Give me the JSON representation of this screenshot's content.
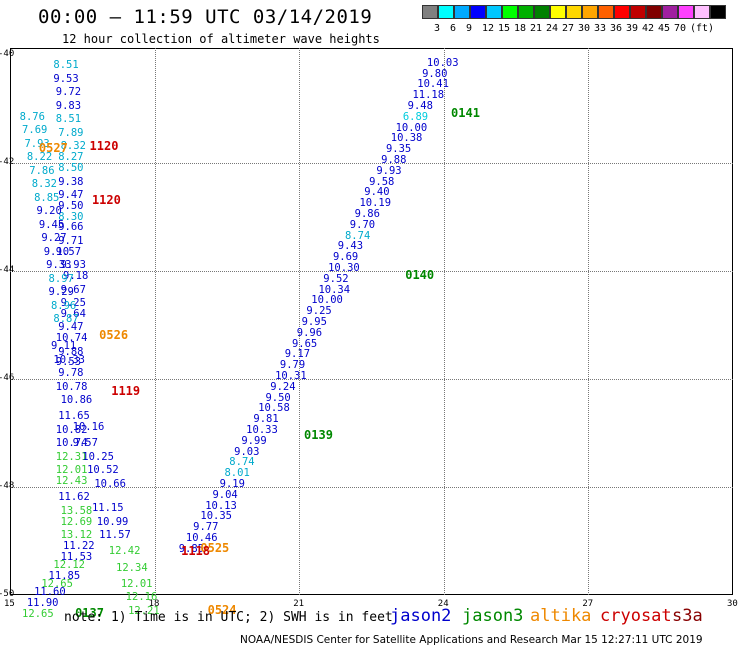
{
  "title": "00:00 – 11:59 UTC 03/14/2019",
  "subtitle": "12 hour collection of altimeter wave heights",
  "legend": {
    "colors": [
      "#808080",
      "#00ffff",
      "#00aaff",
      "#0000ff",
      "#00c8ff",
      "#00ff00",
      "#00b000",
      "#008000",
      "#ffff00",
      "#ffd700",
      "#ffa500",
      "#ff6000",
      "#ff0000",
      "#c00000",
      "#800000",
      "#a020a0",
      "#ff40ff",
      "#ffc0ff",
      "#000000"
    ],
    "labels": [
      "3",
      "6",
      "9",
      "12",
      "15",
      "18",
      "21",
      "24",
      "27",
      "30",
      "33",
      "36",
      "39",
      "42",
      "45",
      "70",
      "(ft)"
    ]
  },
  "y_ticks": [
    "-40",
    "-42",
    "-44",
    "-46",
    "-48",
    "-50"
  ],
  "x_ticks": [
    "15",
    "18",
    "21",
    "24",
    "27",
    "30"
  ],
  "chart_data": {
    "type": "map",
    "lat_range": [
      -50,
      -40
    ],
    "lon_range": [
      15,
      30
    ],
    "observations": [
      {
        "v": "8.51",
        "c": "#00aacc",
        "lat": -40.1,
        "lon": 15.9
      },
      {
        "v": "9.53",
        "c": "#0000cc",
        "lat": -40.35,
        "lon": 15.9
      },
      {
        "v": "9.72",
        "c": "#0000cc",
        "lat": -40.6,
        "lon": 15.95
      },
      {
        "v": "9.83",
        "c": "#0000cc",
        "lat": -40.85,
        "lon": 15.95
      },
      {
        "v": "8.51",
        "c": "#00aacc",
        "lat": -41.1,
        "lon": 15.95
      },
      {
        "v": "7.89",
        "c": "#00aacc",
        "lat": -41.35,
        "lon": 16.0
      },
      {
        "v": "8.32",
        "c": "#00aacc",
        "lat": -41.6,
        "lon": 16.05
      },
      {
        "v": "8.27",
        "c": "#00aacc",
        "lat": -41.8,
        "lon": 16.0
      },
      {
        "v": "8.50",
        "c": "#00aacc",
        "lat": -42.0,
        "lon": 16.0
      },
      {
        "v": "9.38",
        "c": "#0000cc",
        "lat": -42.25,
        "lon": 16.0
      },
      {
        "v": "9.47",
        "c": "#0000cc",
        "lat": -42.5,
        "lon": 16.0
      },
      {
        "v": "9.50",
        "c": "#0000cc",
        "lat": -42.7,
        "lon": 16.0
      },
      {
        "v": "8.30",
        "c": "#00aacc",
        "lat": -42.9,
        "lon": 16.0
      },
      {
        "v": "9.66",
        "c": "#0000cc",
        "lat": -43.1,
        "lon": 16.0
      },
      {
        "v": "9.71",
        "c": "#0000cc",
        "lat": -43.35,
        "lon": 16.0
      },
      {
        "v": "9.57",
        "c": "#0000cc",
        "lat": -43.55,
        "lon": 15.95
      },
      {
        "v": "9.93",
        "c": "#0000cc",
        "lat": -43.8,
        "lon": 16.05
      },
      {
        "v": "9.18",
        "c": "#0000cc",
        "lat": -44.0,
        "lon": 16.1
      },
      {
        "v": "9.67",
        "c": "#0000cc",
        "lat": -44.25,
        "lon": 16.05
      },
      {
        "v": "9.25",
        "c": "#0000cc",
        "lat": -44.5,
        "lon": 16.05
      },
      {
        "v": "9.64",
        "c": "#0000cc",
        "lat": -44.7,
        "lon": 16.05
      },
      {
        "v": "9.47",
        "c": "#0000cc",
        "lat": -44.95,
        "lon": 16.0
      },
      {
        "v": "10.74",
        "c": "#0000cc",
        "lat": -45.15,
        "lon": 15.95
      },
      {
        "v": "9.88",
        "c": "#0000cc",
        "lat": -45.4,
        "lon": 16.0
      },
      {
        "v": "9.53",
        "c": "#0000cc",
        "lat": -45.6,
        "lon": 15.95
      },
      {
        "v": "9.78",
        "c": "#0000cc",
        "lat": -45.8,
        "lon": 16.0
      },
      {
        "v": "10.78",
        "c": "#0000cc",
        "lat": -46.05,
        "lon": 15.95
      },
      {
        "v": "10.86",
        "c": "#0000cc",
        "lat": -46.3,
        "lon": 16.05
      },
      {
        "v": "11.65",
        "c": "#0000cc",
        "lat": -46.6,
        "lon": 16.0
      },
      {
        "v": "10.82",
        "c": "#0000cc",
        "lat": -46.85,
        "lon": 15.95
      },
      {
        "v": "10.74",
        "c": "#0000cc",
        "lat": -47.1,
        "lon": 15.95
      },
      {
        "v": "12.31",
        "c": "#33cc33",
        "lat": -47.35,
        "lon": 15.95
      },
      {
        "v": "12.01",
        "c": "#33cc33",
        "lat": -47.6,
        "lon": 15.95
      },
      {
        "v": "12.43",
        "c": "#33cc33",
        "lat": -47.8,
        "lon": 15.95
      },
      {
        "v": "11.62",
        "c": "#0000cc",
        "lat": -48.1,
        "lon": 16.0
      },
      {
        "v": "13.58",
        "c": "#33cc33",
        "lat": -48.35,
        "lon": 16.05
      },
      {
        "v": "12.69",
        "c": "#33cc33",
        "lat": -48.55,
        "lon": 16.05
      },
      {
        "v": "13.12",
        "c": "#33cc33",
        "lat": -48.8,
        "lon": 16.05
      },
      {
        "v": "11.22",
        "c": "#0000cc",
        "lat": -49.0,
        "lon": 16.1
      },
      {
        "v": "11.53",
        "c": "#0000cc",
        "lat": -49.2,
        "lon": 16.05
      },
      {
        "v": "12.12",
        "c": "#33cc33",
        "lat": -49.35,
        "lon": 15.9
      },
      {
        "v": "11.85",
        "c": "#0000cc",
        "lat": -49.55,
        "lon": 15.8
      },
      {
        "v": "12.65",
        "c": "#33cc33",
        "lat": -49.7,
        "lon": 15.65
      },
      {
        "v": "11.60",
        "c": "#0000cc",
        "lat": -49.85,
        "lon": 15.5
      },
      {
        "v": "11.90",
        "c": "#0000cc",
        "lat": -50.05,
        "lon": 15.35
      },
      {
        "v": "12.65",
        "c": "#33cc33",
        "lat": -50.25,
        "lon": 15.25
      },
      {
        "v": "8.76",
        "c": "#00aacc",
        "lat": -41.05,
        "lon": 15.2
      },
      {
        "v": "7.69",
        "c": "#00aacc",
        "lat": -41.3,
        "lon": 15.25
      },
      {
        "v": "7.93",
        "c": "#00aacc",
        "lat": -41.55,
        "lon": 15.3
      },
      {
        "v": "8.22",
        "c": "#00aacc",
        "lat": -41.8,
        "lon": 15.35
      },
      {
        "v": "7.86",
        "c": "#00aacc",
        "lat": -42.05,
        "lon": 15.4
      },
      {
        "v": "8.32",
        "c": "#00aacc",
        "lat": -42.3,
        "lon": 15.45
      },
      {
        "v": "8.85",
        "c": "#00aacc",
        "lat": -42.55,
        "lon": 15.5
      },
      {
        "v": "9.20",
        "c": "#0000cc",
        "lat": -42.8,
        "lon": 15.55
      },
      {
        "v": "9.45",
        "c": "#0000cc",
        "lat": -43.05,
        "lon": 15.6
      },
      {
        "v": "9.27",
        "c": "#0000cc",
        "lat": -43.3,
        "lon": 15.65
      },
      {
        "v": "9.10",
        "c": "#0000cc",
        "lat": -43.55,
        "lon": 15.7
      },
      {
        "v": "9.33",
        "c": "#0000cc",
        "lat": -43.8,
        "lon": 15.75
      },
      {
        "v": "8.97",
        "c": "#00aacc",
        "lat": -44.05,
        "lon": 15.8
      },
      {
        "v": "9.29",
        "c": "#0000cc",
        "lat": -44.3,
        "lon": 15.8
      },
      {
        "v": "8.96",
        "c": "#00aacc",
        "lat": -44.55,
        "lon": 15.85
      },
      {
        "v": "8.87",
        "c": "#00aacc",
        "lat": -44.8,
        "lon": 15.9
      },
      {
        "v": "9.11",
        "c": "#0000cc",
        "lat": -45.3,
        "lon": 15.85
      },
      {
        "v": "10.33",
        "c": "#0000cc",
        "lat": -45.55,
        "lon": 15.9
      },
      {
        "v": "10.16",
        "c": "#0000cc",
        "lat": -46.8,
        "lon": 16.3
      },
      {
        "v": "9.57",
        "c": "#0000cc",
        "lat": -47.1,
        "lon": 16.3
      },
      {
        "v": "10.25",
        "c": "#0000cc",
        "lat": -47.35,
        "lon": 16.5
      },
      {
        "v": "10.52",
        "c": "#0000cc",
        "lat": -47.6,
        "lon": 16.6
      },
      {
        "v": "10.66",
        "c": "#0000cc",
        "lat": -47.85,
        "lon": 16.75
      },
      {
        "v": "11.15",
        "c": "#0000cc",
        "lat": -48.3,
        "lon": 16.7
      },
      {
        "v": "10.99",
        "c": "#0000cc",
        "lat": -48.55,
        "lon": 16.8
      },
      {
        "v": "11.57",
        "c": "#0000cc",
        "lat": -48.8,
        "lon": 16.85
      },
      {
        "v": "12.42",
        "c": "#33cc33",
        "lat": -49.1,
        "lon": 17.05
      },
      {
        "v": "12.34",
        "c": "#33cc33",
        "lat": -49.4,
        "lon": 17.2
      },
      {
        "v": "12.01",
        "c": "#33cc33",
        "lat": -49.7,
        "lon": 17.3
      },
      {
        "v": "12.16",
        "c": "#33cc33",
        "lat": -49.95,
        "lon": 17.4
      },
      {
        "v": "12.21",
        "c": "#33cc33",
        "lat": -50.2,
        "lon": 17.45
      },
      {
        "v": "10.03",
        "c": "#0000cc",
        "lat": -40.05,
        "lon": 23.65
      },
      {
        "v": "9.80",
        "c": "#0000cc",
        "lat": -40.25,
        "lon": 23.55
      },
      {
        "v": "10.41",
        "c": "#0000cc",
        "lat": -40.45,
        "lon": 23.45
      },
      {
        "v": "11.18",
        "c": "#0000cc",
        "lat": -40.65,
        "lon": 23.35
      },
      {
        "v": "9.48",
        "c": "#0000cc",
        "lat": -40.85,
        "lon": 23.25
      },
      {
        "v": "6.89",
        "c": "#00ccdd",
        "lat": -41.05,
        "lon": 23.15
      },
      {
        "v": "10.00",
        "c": "#0000cc",
        "lat": -41.25,
        "lon": 23.0
      },
      {
        "v": "10.38",
        "c": "#0000cc",
        "lat": -41.45,
        "lon": 22.9
      },
      {
        "v": "9.35",
        "c": "#0000cc",
        "lat": -41.65,
        "lon": 22.8
      },
      {
        "v": "9.88",
        "c": "#0000cc",
        "lat": -41.85,
        "lon": 22.7
      },
      {
        "v": "9.93",
        "c": "#0000cc",
        "lat": -42.05,
        "lon": 22.6
      },
      {
        "v": "9.58",
        "c": "#0000cc",
        "lat": -42.25,
        "lon": 22.45
      },
      {
        "v": "9.40",
        "c": "#0000cc",
        "lat": -42.45,
        "lon": 22.35
      },
      {
        "v": "10.19",
        "c": "#0000cc",
        "lat": -42.65,
        "lon": 22.25
      },
      {
        "v": "9.86",
        "c": "#0000cc",
        "lat": -42.85,
        "lon": 22.15
      },
      {
        "v": "9.70",
        "c": "#0000cc",
        "lat": -43.05,
        "lon": 22.05
      },
      {
        "v": "8.74",
        "c": "#00aacc",
        "lat": -43.25,
        "lon": 21.95
      },
      {
        "v": "9.43",
        "c": "#0000cc",
        "lat": -43.45,
        "lon": 21.8
      },
      {
        "v": "9.69",
        "c": "#0000cc",
        "lat": -43.65,
        "lon": 21.7
      },
      {
        "v": "10.30",
        "c": "#0000cc",
        "lat": -43.85,
        "lon": 21.6
      },
      {
        "v": "9.52",
        "c": "#0000cc",
        "lat": -44.05,
        "lon": 21.5
      },
      {
        "v": "10.34",
        "c": "#0000cc",
        "lat": -44.25,
        "lon": 21.4
      },
      {
        "v": "10.00",
        "c": "#0000cc",
        "lat": -44.45,
        "lon": 21.25
      },
      {
        "v": "9.25",
        "c": "#0000cc",
        "lat": -44.65,
        "lon": 21.15
      },
      {
        "v": "9.95",
        "c": "#0000cc",
        "lat": -44.85,
        "lon": 21.05
      },
      {
        "v": "9.96",
        "c": "#0000cc",
        "lat": -45.05,
        "lon": 20.95
      },
      {
        "v": "9.65",
        "c": "#0000cc",
        "lat": -45.25,
        "lon": 20.85
      },
      {
        "v": "9.17",
        "c": "#0000cc",
        "lat": -45.45,
        "lon": 20.7
      },
      {
        "v": "9.79",
        "c": "#0000cc",
        "lat": -45.65,
        "lon": 20.6
      },
      {
        "v": "10.31",
        "c": "#0000cc",
        "lat": -45.85,
        "lon": 20.5
      },
      {
        "v": "9.24",
        "c": "#0000cc",
        "lat": -46.05,
        "lon": 20.4
      },
      {
        "v": "9.50",
        "c": "#0000cc",
        "lat": -46.25,
        "lon": 20.3
      },
      {
        "v": "10.58",
        "c": "#0000cc",
        "lat": -46.45,
        "lon": 20.15
      },
      {
        "v": "9.81",
        "c": "#0000cc",
        "lat": -46.65,
        "lon": 20.05
      },
      {
        "v": "10.33",
        "c": "#0000cc",
        "lat": -46.85,
        "lon": 19.9
      },
      {
        "v": "9.99",
        "c": "#0000cc",
        "lat": -47.05,
        "lon": 19.8
      },
      {
        "v": "9.03",
        "c": "#0000cc",
        "lat": -47.25,
        "lon": 19.65
      },
      {
        "v": "8.74",
        "c": "#00aacc",
        "lat": -47.45,
        "lon": 19.55
      },
      {
        "v": "8.01",
        "c": "#00aacc",
        "lat": -47.65,
        "lon": 19.45
      },
      {
        "v": "9.19",
        "c": "#0000cc",
        "lat": -47.85,
        "lon": 19.35
      },
      {
        "v": "9.04",
        "c": "#0000cc",
        "lat": -48.05,
        "lon": 19.2
      },
      {
        "v": "10.13",
        "c": "#0000cc",
        "lat": -48.25,
        "lon": 19.05
      },
      {
        "v": "10.35",
        "c": "#0000cc",
        "lat": -48.45,
        "lon": 18.95
      },
      {
        "v": "9.77",
        "c": "#0000cc",
        "lat": -48.65,
        "lon": 18.8
      },
      {
        "v": "10.46",
        "c": "#0000cc",
        "lat": -48.85,
        "lon": 18.65
      },
      {
        "v": "9.85",
        "c": "#0000cc",
        "lat": -49.05,
        "lon": 18.5
      }
    ],
    "time_labels": [
      {
        "t": "1120",
        "c": "#cc0000",
        "lat": -41.55,
        "lon": 16.65
      },
      {
        "t": "0527",
        "c": "#ee8800",
        "lat": -41.6,
        "lon": 15.6
      },
      {
        "t": "1120",
        "c": "#cc0000",
        "lat": -42.55,
        "lon": 16.7
      },
      {
        "t": "0526",
        "c": "#ee8800",
        "lat": -45.05,
        "lon": 16.85
      },
      {
        "t": "1119",
        "c": "#cc0000",
        "lat": -46.1,
        "lon": 17.1
      },
      {
        "t": "0525",
        "c": "#ee8800",
        "lat": -49.0,
        "lon": 18.95
      },
      {
        "t": "1118",
        "c": "#cc0000",
        "lat": -49.05,
        "lon": 18.55
      },
      {
        "t": "0524",
        "c": "#ee8800",
        "lat": -50.15,
        "lon": 19.1
      },
      {
        "t": "0137",
        "c": "#008800",
        "lat": -50.2,
        "lon": 16.35
      },
      {
        "t": "0141",
        "c": "#008800",
        "lat": -40.95,
        "lon": 24.15
      },
      {
        "t": "0140",
        "c": "#008800",
        "lat": -43.95,
        "lon": 23.2
      },
      {
        "t": "0139",
        "c": "#008800",
        "lat": -46.9,
        "lon": 21.1
      }
    ]
  },
  "note": "note: 1) Time is in UTC; 2) SWH is in feet",
  "satellites": [
    {
      "name": "jason2",
      "color": "#0000cc"
    },
    {
      "name": "jason3",
      "color": "#008800"
    },
    {
      "name": "altika",
      "color": "#ee8800"
    },
    {
      "name": "cryosat",
      "color": "#cc0000"
    },
    {
      "name": "s3a",
      "color": "#880000"
    }
  ],
  "credit": "NOAA/NESDIS Center for Satellite Applications and Research    Mar 15 12:27:11 UTC 2019"
}
